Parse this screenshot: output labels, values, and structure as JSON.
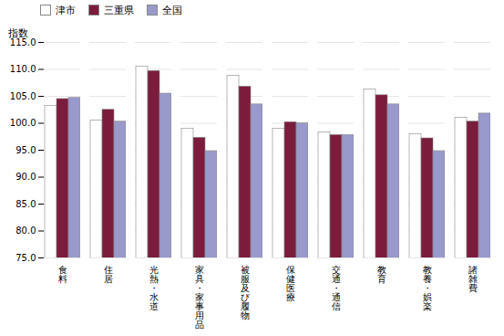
{
  "chart_data": {
    "type": "bar",
    "categories": [
      "食料",
      "住居",
      "光熱・水道",
      "家具・家事用品",
      "被服及び履物",
      "保健医療",
      "交通・通信",
      "教育",
      "教養・娯楽",
      "諸雑費"
    ],
    "series": [
      {
        "name": "津市",
        "color": "#ffffff",
        "values": [
          103.2,
          100.5,
          110.5,
          99.0,
          108.8,
          99.0,
          98.3,
          106.3,
          98.0,
          101.0
        ]
      },
      {
        "name": "三重県",
        "color": "#7b1c3c",
        "values": [
          104.5,
          102.5,
          109.7,
          97.3,
          106.8,
          100.2,
          97.8,
          105.2,
          97.2,
          100.3
        ]
      },
      {
        "name": "全国",
        "color": "#9999cc",
        "values": [
          104.7,
          100.3,
          105.5,
          94.8,
          103.5,
          100.0,
          97.8,
          103.5,
          94.8,
          101.8
        ]
      }
    ],
    "ylabel": "指数",
    "ylim": [
      75.0,
      115.0
    ],
    "yticks": [
      {
        "value": 75,
        "label": "75.0"
      },
      {
        "value": 80,
        "label": "80.0"
      },
      {
        "value": 85,
        "label": "85.0"
      },
      {
        "value": 90,
        "label": "90.0"
      },
      {
        "value": 95,
        "label": "95.0"
      },
      {
        "value": 100,
        "label": "100.0"
      },
      {
        "value": 105,
        "label": "105.0"
      },
      {
        "value": 110,
        "label": "110.0"
      },
      {
        "value": 115,
        "label": "115.0"
      }
    ],
    "grid": true
  }
}
